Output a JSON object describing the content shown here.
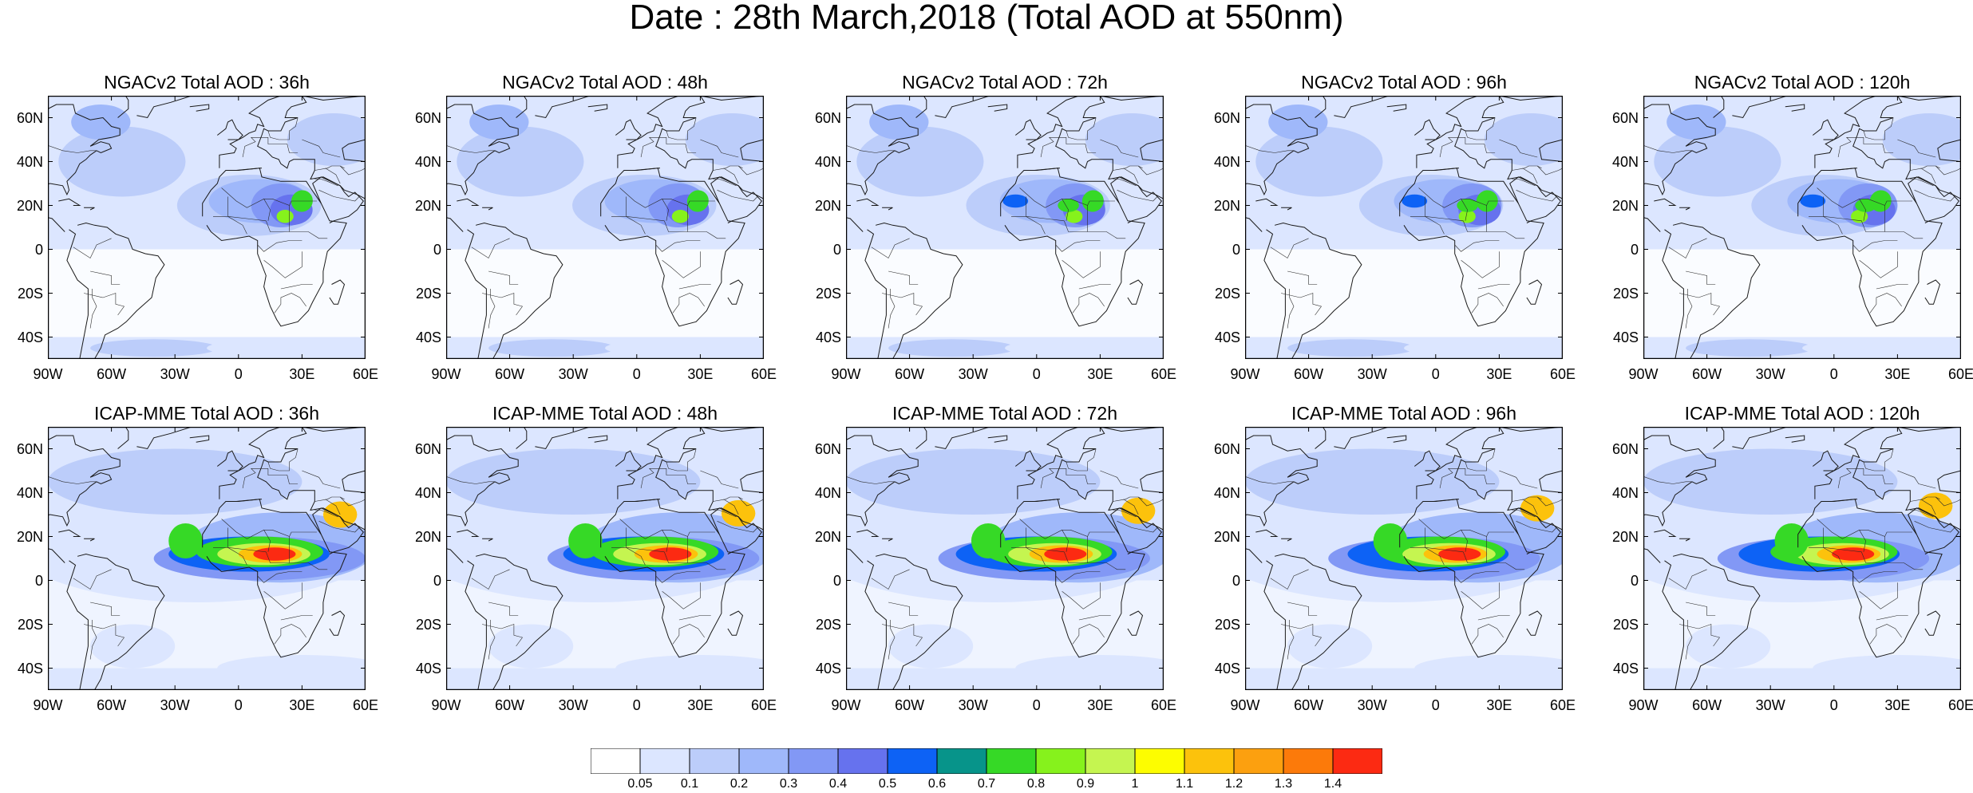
{
  "title": "Date : 28th March,2018 (Total AOD at 550nm)",
  "panels": [
    {
      "title": "NGACv2 Total AOD : 36h",
      "model": "ngac",
      "lead": 36
    },
    {
      "title": "NGACv2 Total AOD : 48h",
      "model": "ngac",
      "lead": 48
    },
    {
      "title": "NGACv2 Total AOD : 72h",
      "model": "ngac",
      "lead": 72
    },
    {
      "title": "NGACv2 Total AOD : 96h",
      "model": "ngac",
      "lead": 96
    },
    {
      "title": "NGACv2 Total AOD : 120h",
      "model": "ngac",
      "lead": 120
    },
    {
      "title": "ICAP-MME Total AOD : 36h",
      "model": "icap",
      "lead": 36
    },
    {
      "title": "ICAP-MME Total AOD : 48h",
      "model": "icap",
      "lead": 48
    },
    {
      "title": "ICAP-MME Total AOD : 72h",
      "model": "icap",
      "lead": 72
    },
    {
      "title": "ICAP-MME Total AOD : 96h",
      "model": "icap",
      "lead": 96
    },
    {
      "title": "ICAP-MME Total AOD : 120h",
      "model": "icap",
      "lead": 120
    }
  ],
  "map": {
    "lon_range": [
      -90,
      60
    ],
    "lat_range": [
      -50,
      70
    ],
    "lat_ticks": [
      {
        "value": 60,
        "label": "60N"
      },
      {
        "value": 40,
        "label": "40N"
      },
      {
        "value": 20,
        "label": "20N"
      },
      {
        "value": 0,
        "label": "0"
      },
      {
        "value": -20,
        "label": "20S"
      },
      {
        "value": -40,
        "label": "40S"
      }
    ],
    "lon_ticks": [
      {
        "value": -90,
        "label": "90W"
      },
      {
        "value": -60,
        "label": "60W"
      },
      {
        "value": -30,
        "label": "30W"
      },
      {
        "value": 0,
        "label": "0"
      },
      {
        "value": 30,
        "label": "30E"
      },
      {
        "value": 60,
        "label": "60E"
      }
    ]
  },
  "colorbar": {
    "colors": [
      "#ffffff",
      "#dce6ff",
      "#bccdfa",
      "#9fb8fa",
      "#8298f5",
      "#6672ee",
      "#0d62f5",
      "#07948a",
      "#36d926",
      "#86f21c",
      "#c5f550",
      "#fdfd00",
      "#fcc20c",
      "#fca00f",
      "#fc7a0a",
      "#fc2a12"
    ],
    "labels": [
      "0.05",
      "0.1",
      "0.2",
      "0.3",
      "0.4",
      "0.5",
      "0.6",
      "0.7",
      "0.8",
      "0.9",
      "1",
      "1.1",
      "1.2",
      "1.3",
      "1.4"
    ]
  }
}
